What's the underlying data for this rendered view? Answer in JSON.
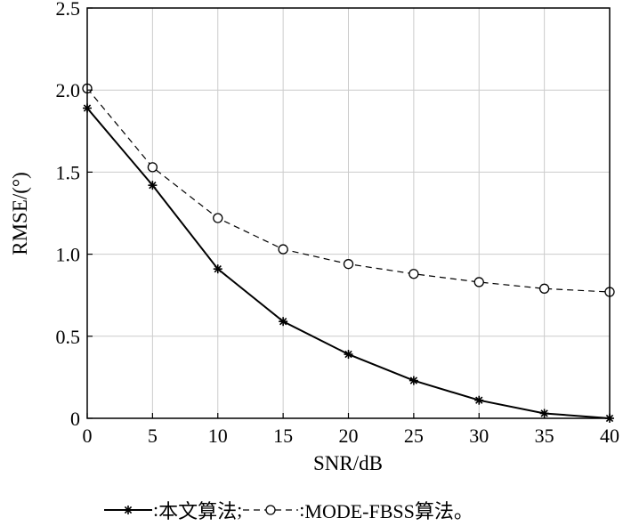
{
  "chart_data": {
    "type": "line",
    "x": [
      0,
      5,
      10,
      15,
      20,
      25,
      30,
      35,
      40
    ],
    "series": [
      {
        "name": "本文算法",
        "values": [
          1.89,
          1.42,
          0.91,
          0.59,
          0.39,
          0.23,
          0.11,
          0.03,
          0.0
        ],
        "marker": "asterisk",
        "line_style": "solid"
      },
      {
        "name": "MODE-FBSS算法",
        "values": [
          2.01,
          1.53,
          1.22,
          1.03,
          0.94,
          0.88,
          0.83,
          0.79,
          0.77
        ],
        "marker": "circle",
        "line_style": "dashed"
      }
    ],
    "title": "",
    "xlabel": "SNR/dB",
    "ylabel": "RMSE/(°)",
    "xlim": [
      0,
      40
    ],
    "ylim": [
      0,
      2.5
    ],
    "x_ticks": [
      "0",
      "5",
      "10",
      "15",
      "20",
      "25",
      "30",
      "35",
      "40"
    ],
    "y_ticks": [
      "0",
      "0.5",
      "1.0",
      "1.5",
      "2.0",
      "2.5"
    ],
    "grid": true,
    "legend_position": "bottom",
    "legend": {
      "sep1": ": ",
      "label1": "本文算法",
      "sep2": "; ",
      "sep3": ": ",
      "label2": "MODE-FBSS算法",
      "end": "。"
    }
  }
}
